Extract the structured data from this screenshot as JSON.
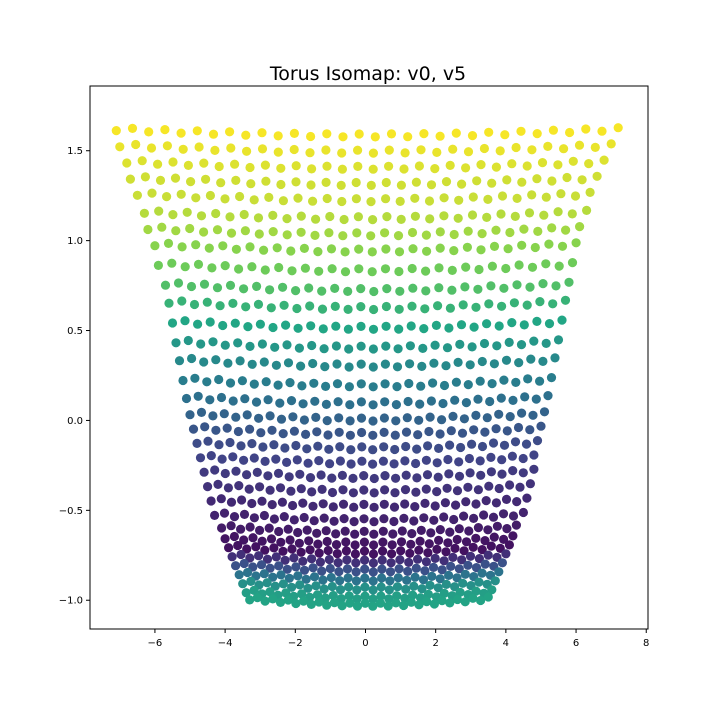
{
  "chart_data": {
    "type": "scatter",
    "title": "Torus Isomap: v0, v5",
    "xlabel": "",
    "ylabel": "",
    "xlim": [
      -7.85,
      8.05
    ],
    "ylim": [
      -1.16,
      1.86
    ],
    "x_ticks": [
      -6,
      -4,
      -2,
      0,
      2,
      4,
      6,
      8
    ],
    "x_tick_labels": [
      "−6",
      "−4",
      "−2",
      "0",
      "2",
      "4",
      "6",
      "8"
    ],
    "y_ticks": [
      -1.0,
      -0.5,
      0.0,
      0.5,
      1.0,
      1.5
    ],
    "y_tick_labels": [
      "−1.0",
      "−0.5",
      "0.0",
      "0.5",
      "1.0",
      "1.5"
    ],
    "grid": false,
    "legend": "none",
    "colormap": "viridis",
    "colormap_stops": [
      "#440154",
      "#414487",
      "#2a788e",
      "#22a884",
      "#7ad151",
      "#fde725"
    ],
    "marker_color_range": [
      0.0,
      1.0
    ],
    "columns": 32,
    "rows": [
      {
        "y": 1.62,
        "x_left": -7.1,
        "x_right": 7.2,
        "c": 0.99
      },
      {
        "y": 1.53,
        "x_left": -7.0,
        "x_right": 7.0,
        "c": 0.97
      },
      {
        "y": 1.44,
        "x_left": -6.8,
        "x_right": 6.8,
        "c": 0.95
      },
      {
        "y": 1.35,
        "x_left": -6.7,
        "x_right": 6.6,
        "c": 0.93
      },
      {
        "y": 1.26,
        "x_left": -6.5,
        "x_right": 6.4,
        "c": 0.92
      },
      {
        "y": 1.16,
        "x_left": -6.3,
        "x_right": 6.3,
        "c": 0.89
      },
      {
        "y": 1.07,
        "x_left": -6.2,
        "x_right": 6.1,
        "c": 0.86
      },
      {
        "y": 0.98,
        "x_left": -6.0,
        "x_right": 6.0,
        "c": 0.82
      },
      {
        "y": 0.87,
        "x_left": -5.9,
        "x_right": 5.9,
        "c": 0.77
      },
      {
        "y": 0.76,
        "x_left": -5.7,
        "x_right": 5.8,
        "c": 0.71
      },
      {
        "y": 0.66,
        "x_left": -5.6,
        "x_right": 5.7,
        "c": 0.65
      },
      {
        "y": 0.55,
        "x_left": -5.5,
        "x_right": 5.6,
        "c": 0.59
      },
      {
        "y": 0.44,
        "x_left": -5.4,
        "x_right": 5.5,
        "c": 0.53
      },
      {
        "y": 0.34,
        "x_left": -5.3,
        "x_right": 5.4,
        "c": 0.47
      },
      {
        "y": 0.23,
        "x_left": -5.2,
        "x_right": 5.3,
        "c": 0.42
      },
      {
        "y": 0.13,
        "x_left": -5.1,
        "x_right": 5.2,
        "c": 0.37
      },
      {
        "y": 0.04,
        "x_left": -5.0,
        "x_right": 5.1,
        "c": 0.32
      },
      {
        "y": -0.04,
        "x_left": -4.9,
        "x_right": 5.0,
        "c": 0.27
      },
      {
        "y": -0.12,
        "x_left": -4.8,
        "x_right": 4.9,
        "c": 0.23
      },
      {
        "y": -0.2,
        "x_left": -4.7,
        "x_right": 4.8,
        "c": 0.2
      },
      {
        "y": -0.28,
        "x_left": -4.6,
        "x_right": 4.8,
        "c": 0.17
      },
      {
        "y": -0.36,
        "x_left": -4.5,
        "x_right": 4.7,
        "c": 0.15
      },
      {
        "y": -0.44,
        "x_left": -4.4,
        "x_right": 4.6,
        "c": 0.12
      },
      {
        "y": -0.52,
        "x_left": -4.3,
        "x_right": 4.5,
        "c": 0.1
      },
      {
        "y": -0.59,
        "x_left": -4.1,
        "x_right": 4.3,
        "c": 0.08
      },
      {
        "y": -0.65,
        "x_left": -4.0,
        "x_right": 4.2,
        "c": 0.06
      },
      {
        "y": -0.7,
        "x_left": -3.9,
        "x_right": 4.1,
        "c": 0.05
      },
      {
        "y": -0.75,
        "x_left": -3.8,
        "x_right": 4.0,
        "c": 0.14
      },
      {
        "y": -0.8,
        "x_left": -3.7,
        "x_right": 3.9,
        "c": 0.25
      },
      {
        "y": -0.85,
        "x_left": -3.6,
        "x_right": 3.8,
        "c": 0.38
      },
      {
        "y": -0.9,
        "x_left": -3.5,
        "x_right": 3.7,
        "c": 0.5
      },
      {
        "y": -0.95,
        "x_left": -3.4,
        "x_right": 3.6,
        "c": 0.56
      },
      {
        "y": -0.99,
        "x_left": -3.3,
        "x_right": 3.5,
        "c": 0.58
      }
    ]
  }
}
